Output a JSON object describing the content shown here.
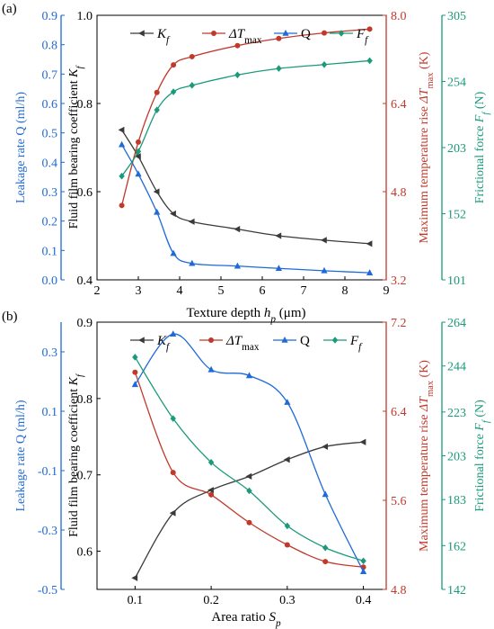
{
  "chart_data": [
    {
      "panel_label": "(a)",
      "type": "line",
      "xlabel": "Texture depth h_p (μm)",
      "xlim": [
        2,
        9
      ],
      "x_ticks": [
        "2",
        "3",
        "4",
        "5",
        "6",
        "7",
        "8",
        "9"
      ],
      "axes": [
        {
          "id": "kf",
          "label": "Fluid film bearing coefficient K_f",
          "color": "#3a3a3a",
          "lim": [
            0.4,
            1.0
          ],
          "ticks": [
            "0.4",
            "0.6",
            "0.8",
            "1.0"
          ]
        },
        {
          "id": "q",
          "label": "Leakage rate Q (ml/h)",
          "color": "#1f6ad6",
          "lim": [
            0.0,
            0.9
          ],
          "ticks": [
            "0.0",
            "0.1",
            "0.2",
            "0.3",
            "0.4",
            "0.5",
            "0.6",
            "0.7",
            "0.8",
            "0.9"
          ]
        },
        {
          "id": "dt",
          "label": "Maximum temperature rise ΔT_max (K)",
          "color": "#c0392b",
          "lim": [
            3.2,
            8.0
          ],
          "ticks": [
            "3.2",
            "4.8",
            "6.4",
            "8.0"
          ]
        },
        {
          "id": "ff",
          "label": "Frictional force F_f (N)",
          "color": "#1a9a7a",
          "lim": [
            101,
            305
          ],
          "ticks": [
            "101",
            "152",
            "203",
            "254",
            "305"
          ]
        }
      ],
      "legend": [
        "K_f",
        "ΔT_max",
        "Q",
        "F_f"
      ],
      "series": [
        {
          "name": "K_f",
          "axis": "kf",
          "color": "#3a3a3a",
          "marker": "triangle-left",
          "x": [
            2.6,
            3.0,
            3.45,
            3.85,
            4.3,
            5.4,
            6.4,
            7.5,
            8.6
          ],
          "y": [
            0.74,
            0.68,
            0.6,
            0.55,
            0.532,
            0.515,
            0.5,
            0.49,
            0.482
          ]
        },
        {
          "name": "ΔT_max",
          "axis": "dt",
          "color": "#c0392b",
          "marker": "circle",
          "x": [
            2.6,
            3.0,
            3.45,
            3.85,
            4.3,
            5.4,
            6.4,
            7.5,
            8.6
          ],
          "y": [
            4.55,
            5.7,
            6.6,
            7.1,
            7.25,
            7.45,
            7.58,
            7.68,
            7.75
          ]
        },
        {
          "name": "Q",
          "axis": "q",
          "color": "#1f6ad6",
          "marker": "triangle-up",
          "x": [
            2.6,
            3.0,
            3.45,
            3.85,
            4.3,
            5.4,
            6.4,
            7.5,
            8.6
          ],
          "y": [
            0.46,
            0.36,
            0.23,
            0.09,
            0.056,
            0.047,
            0.039,
            0.031,
            0.024
          ]
        },
        {
          "name": "F_f",
          "axis": "ff",
          "color": "#1a9a7a",
          "marker": "diamond",
          "x": [
            2.6,
            3.0,
            3.45,
            3.85,
            4.3,
            5.4,
            6.4,
            7.5,
            8.6
          ],
          "y": [
            181,
            200,
            232,
            246,
            251,
            259,
            264,
            267,
            270
          ]
        }
      ]
    },
    {
      "panel_label": "(b)",
      "type": "line",
      "xlabel": "Area ratio S_p",
      "xlim": [
        0.05,
        0.43
      ],
      "x_ticks": [
        "0.1",
        "0.2",
        "0.3",
        "0.4"
      ],
      "axes": [
        {
          "id": "kf",
          "label": "Fluid film bearing coefficient K_f",
          "color": "#3a3a3a",
          "lim": [
            0.55,
            0.9
          ],
          "ticks": [
            "0.6",
            "0.7",
            "0.8",
            "0.9"
          ]
        },
        {
          "id": "q",
          "label": "Leakage rate Q (ml/h)",
          "color": "#1f6ad6",
          "lim": [
            -0.5,
            0.4
          ],
          "ticks": [
            "-0.5",
            "-0.3",
            "-0.1",
            "0.1",
            "0.3"
          ]
        },
        {
          "id": "dt",
          "label": "Maximum temperature rise ΔT_max (K)",
          "color": "#c0392b",
          "lim": [
            4.8,
            7.2
          ],
          "ticks": [
            "4.8",
            "5.6",
            "6.4",
            "7.2"
          ]
        },
        {
          "id": "ff",
          "label": "Frictional force F_f (N)",
          "color": "#1a9a7a",
          "lim": [
            142,
            264
          ],
          "ticks": [
            "142",
            "162",
            "183",
            "203",
            "223",
            "244",
            "264"
          ]
        }
      ],
      "legend": [
        "K_f",
        "ΔT_max",
        "Q",
        "F_f"
      ],
      "series": [
        {
          "name": "K_f",
          "axis": "kf",
          "color": "#3a3a3a",
          "marker": "triangle-left",
          "x": [
            0.1,
            0.15,
            0.2,
            0.25,
            0.3,
            0.35,
            0.4
          ],
          "y": [
            0.565,
            0.65,
            0.68,
            0.698,
            0.72,
            0.737,
            0.743
          ]
        },
        {
          "name": "ΔT_max",
          "axis": "dt",
          "color": "#c0392b",
          "marker": "circle",
          "x": [
            0.1,
            0.15,
            0.2,
            0.25,
            0.3,
            0.35,
            0.4
          ],
          "y": [
            6.75,
            5.85,
            5.65,
            5.4,
            5.2,
            5.05,
            5.0
          ]
        },
        {
          "name": "Q",
          "axis": "q",
          "color": "#1f6ad6",
          "marker": "triangle-up",
          "x": [
            0.1,
            0.15,
            0.2,
            0.25,
            0.3,
            0.35,
            0.4
          ],
          "y": [
            0.19,
            0.36,
            0.24,
            0.22,
            0.13,
            -0.18,
            -0.44
          ]
        },
        {
          "name": "F_f",
          "axis": "ff",
          "color": "#1a9a7a",
          "marker": "diamond",
          "x": [
            0.1,
            0.15,
            0.2,
            0.25,
            0.3,
            0.35,
            0.4
          ],
          "y": [
            248,
            220,
            200,
            187,
            171,
            161,
            155
          ]
        }
      ]
    }
  ]
}
